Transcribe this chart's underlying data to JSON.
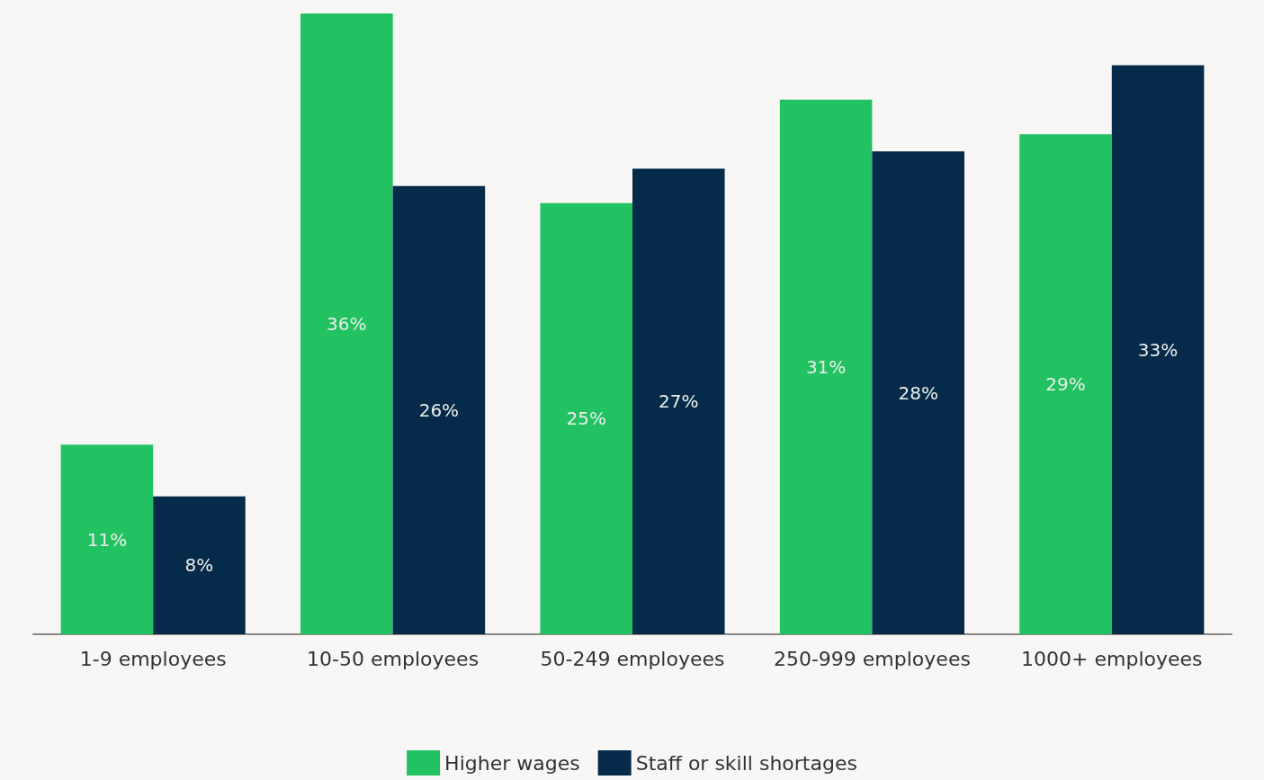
{
  "chart_data": {
    "type": "bar",
    "categories": [
      "1-9 employees",
      "10-50 employees",
      "50-249 employees",
      "250-999 employees",
      "1000+ employees"
    ],
    "series": [
      {
        "name": "Higher wages",
        "color": "#22c162",
        "values": [
          11,
          36,
          25,
          31,
          29
        ],
        "value_labels": [
          "11%",
          "36%",
          "25%",
          "31%",
          "29%"
        ]
      },
      {
        "name": "Staff or skill shortages",
        "color": "#062a4a",
        "values": [
          8,
          26,
          27,
          28,
          33
        ],
        "value_labels": [
          "8%",
          "26%",
          "27%",
          "28%",
          "33%"
        ]
      }
    ],
    "legend": "bottom",
    "grid": false
  }
}
